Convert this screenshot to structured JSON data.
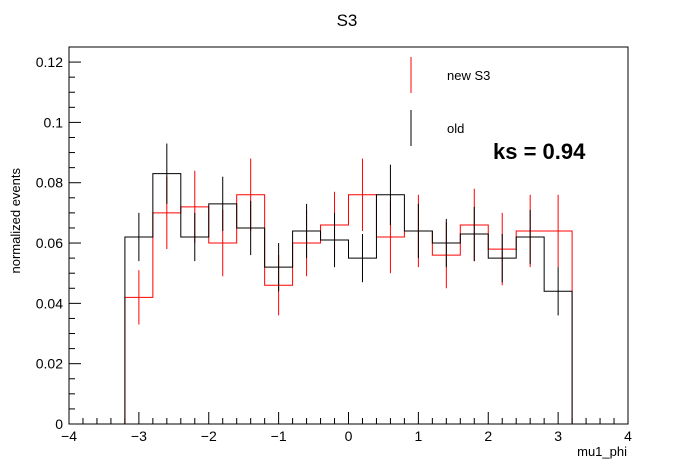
{
  "chart_data": {
    "type": "histogram",
    "title": "S3",
    "xlabel": "mu1_phi",
    "ylabel": "normalized events",
    "xlim": [
      -4,
      4
    ],
    "ylim": [
      0,
      0.125
    ],
    "xticks": [
      -4,
      -3,
      -2,
      -1,
      0,
      1,
      2,
      3,
      4
    ],
    "xtick_labels": [
      "−4",
      "−3",
      "−2",
      "−1",
      "0",
      "1",
      "2",
      "3",
      "4"
    ],
    "yticks": [
      0,
      0.02,
      0.04,
      0.06,
      0.08,
      0.1,
      0.12
    ],
    "ytick_labels": [
      "0",
      "0.02",
      "0.04",
      "0.06",
      "0.08",
      "0.1",
      "0.12"
    ],
    "bin_edges": [
      -3.2,
      -2.8,
      -2.4,
      -2.0,
      -1.6,
      -1.2,
      -0.8,
      -0.4,
      0.0,
      0.4,
      0.8,
      1.2,
      1.6,
      2.0,
      2.4,
      2.8,
      3.2
    ],
    "series": [
      {
        "name": "new S3",
        "color": "#ff0000",
        "values": [
          0.042,
          0.07,
          0.072,
          0.06,
          0.076,
          0.046,
          0.06,
          0.066,
          0.076,
          0.062,
          0.064,
          0.056,
          0.066,
          0.058,
          0.064,
          0.064
        ],
        "errors": [
          0.009,
          0.012,
          0.012,
          0.011,
          0.012,
          0.01,
          0.011,
          0.011,
          0.012,
          0.012,
          0.012,
          0.011,
          0.012,
          0.012,
          0.012,
          0.012
        ]
      },
      {
        "name": "old",
        "color": "#000000",
        "values": [
          0.062,
          0.083,
          0.062,
          0.073,
          0.065,
          0.052,
          0.064,
          0.061,
          0.055,
          0.076,
          0.064,
          0.06,
          0.063,
          0.055,
          0.062,
          0.044
        ],
        "errors": [
          0.008,
          0.01,
          0.008,
          0.009,
          0.009,
          0.008,
          0.009,
          0.009,
          0.008,
          0.01,
          0.009,
          0.008,
          0.009,
          0.008,
          0.009,
          0.008
        ]
      }
    ],
    "legend_position": "top-right",
    "annotation": "ks = 0.94"
  }
}
